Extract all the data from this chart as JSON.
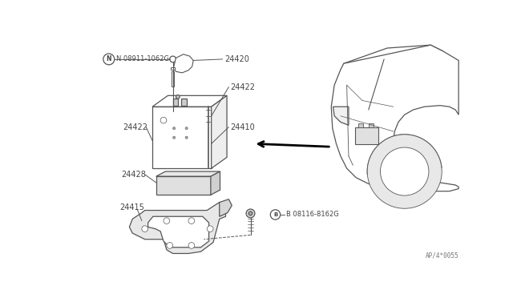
{
  "bg_color": "#ffffff",
  "line_color": "#555555",
  "text_color": "#444444",
  "diagram_code": "AP/4*0055",
  "parts": {
    "N08911": "N 08911-1062G",
    "24420": "24420",
    "24422_right": "24422",
    "24422_left": "24422",
    "24410": "24410",
    "24428": "24428",
    "24415": "24415",
    "B08116": "B 08116-8162G"
  }
}
